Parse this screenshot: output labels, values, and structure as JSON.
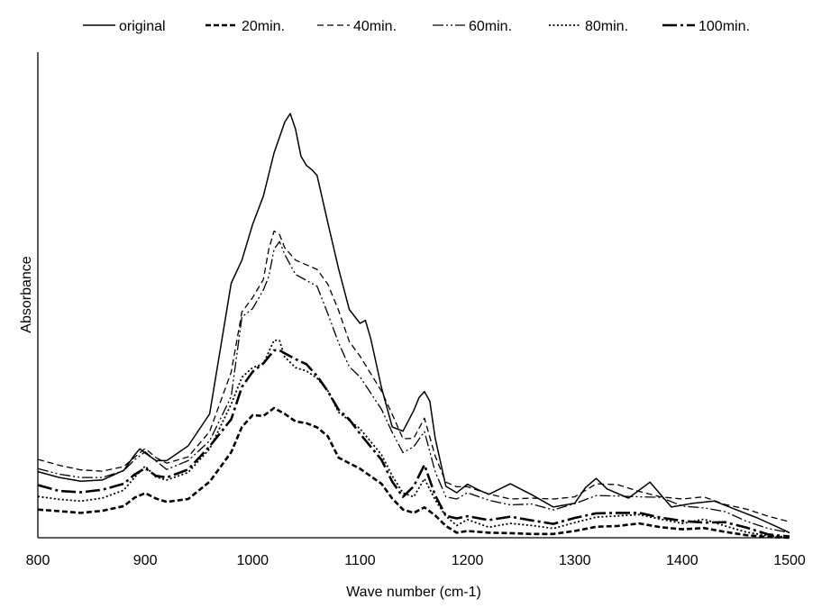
{
  "chart_data": {
    "type": "line",
    "title": "",
    "xlabel": "Wave number (cm-1)",
    "ylabel": "Absorbance",
    "xlim": [
      800,
      1500
    ],
    "ylim": [
      0,
      1
    ],
    "xticks": [
      800,
      900,
      1000,
      1100,
      1200,
      1300,
      1400,
      1500
    ],
    "y_tick_labels_shown": false,
    "grid": false,
    "legend_position": "top",
    "series": [
      {
        "name": "original",
        "style": "solid",
        "x": [
          800,
          820,
          840,
          860,
          880,
          890,
          895,
          900,
          910,
          920,
          940,
          960,
          980,
          990,
          1000,
          1010,
          1020,
          1030,
          1035,
          1040,
          1045,
          1050,
          1055,
          1060,
          1070,
          1080,
          1090,
          1100,
          1105,
          1110,
          1120,
          1130,
          1140,
          1150,
          1155,
          1160,
          1165,
          1170,
          1180,
          1190,
          1200,
          1210,
          1220,
          1240,
          1260,
          1280,
          1300,
          1310,
          1320,
          1330,
          1350,
          1370,
          1390,
          1410,
          1430,
          1450,
          1470,
          1490,
          1500
        ],
        "y": [
          0.157,
          0.143,
          0.134,
          0.137,
          0.16,
          0.196,
          0.211,
          0.201,
          0.183,
          0.183,
          0.218,
          0.294,
          0.604,
          0.659,
          0.744,
          0.811,
          0.914,
          0.987,
          1.007,
          0.97,
          0.906,
          0.884,
          0.874,
          0.86,
          0.748,
          0.639,
          0.542,
          0.509,
          0.516,
          0.473,
          0.356,
          0.263,
          0.253,
          0.302,
          0.333,
          0.347,
          0.324,
          0.237,
          0.122,
          0.107,
          0.127,
          0.114,
          0.103,
          0.128,
          0.102,
          0.073,
          0.082,
          0.119,
          0.141,
          0.116,
          0.094,
          0.132,
          0.073,
          0.082,
          0.087,
          0.067,
          0.047,
          0.024,
          0.012
        ]
      },
      {
        "name": "20min.",
        "style": "short-dash",
        "x": [
          800,
          820,
          840,
          860,
          880,
          890,
          900,
          910,
          920,
          940,
          960,
          980,
          990,
          1000,
          1010,
          1020,
          1030,
          1040,
          1050,
          1060,
          1070,
          1080,
          1100,
          1120,
          1130,
          1140,
          1150,
          1160,
          1170,
          1180,
          1190,
          1200,
          1220,
          1240,
          1260,
          1280,
          1300,
          1320,
          1340,
          1360,
          1380,
          1400,
          1420,
          1440,
          1460,
          1480,
          1500
        ],
        "y": [
          0.067,
          0.063,
          0.059,
          0.064,
          0.075,
          0.095,
          0.106,
          0.093,
          0.085,
          0.092,
          0.133,
          0.203,
          0.263,
          0.291,
          0.289,
          0.308,
          0.294,
          0.276,
          0.272,
          0.262,
          0.241,
          0.19,
          0.164,
          0.128,
          0.093,
          0.067,
          0.059,
          0.072,
          0.053,
          0.028,
          0.012,
          0.016,
          0.012,
          0.011,
          0.009,
          0.009,
          0.016,
          0.026,
          0.028,
          0.034,
          0.025,
          0.02,
          0.023,
          0.014,
          0.006,
          0.002,
          0.0
        ]
      },
      {
        "name": "40min.",
        "style": "dash",
        "x": [
          800,
          820,
          840,
          860,
          880,
          890,
          900,
          910,
          920,
          940,
          960,
          980,
          990,
          1000,
          1010,
          1015,
          1020,
          1025,
          1030,
          1040,
          1060,
          1070,
          1080,
          1090,
          1100,
          1120,
          1130,
          1140,
          1150,
          1160,
          1170,
          1180,
          1190,
          1200,
          1220,
          1240,
          1260,
          1280,
          1300,
          1320,
          1340,
          1360,
          1380,
          1400,
          1420,
          1440,
          1460,
          1480,
          1500
        ],
        "y": [
          0.186,
          0.172,
          0.161,
          0.158,
          0.169,
          0.191,
          0.212,
          0.19,
          0.177,
          0.192,
          0.252,
          0.393,
          0.536,
          0.57,
          0.613,
          0.685,
          0.728,
          0.72,
          0.688,
          0.659,
          0.637,
          0.602,
          0.54,
          0.466,
          0.431,
          0.348,
          0.293,
          0.235,
          0.236,
          0.284,
          0.194,
          0.132,
          0.121,
          0.121,
          0.104,
          0.092,
          0.094,
          0.092,
          0.097,
          0.128,
          0.126,
          0.11,
          0.097,
          0.092,
          0.097,
          0.079,
          0.068,
          0.051,
          0.038
        ]
      },
      {
        "name": "60min.",
        "style": "dash-dot-dot",
        "x": [
          800,
          820,
          840,
          860,
          880,
          890,
          900,
          910,
          920,
          940,
          960,
          980,
          990,
          1000,
          1010,
          1015,
          1020,
          1025,
          1030,
          1040,
          1050,
          1060,
          1070,
          1080,
          1090,
          1100,
          1120,
          1130,
          1140,
          1150,
          1160,
          1170,
          1180,
          1190,
          1200,
          1220,
          1240,
          1260,
          1280,
          1300,
          1320,
          1340,
          1360,
          1380,
          1400,
          1420,
          1440,
          1460,
          1480,
          1500
        ],
        "y": [
          0.164,
          0.151,
          0.143,
          0.143,
          0.159,
          0.185,
          0.204,
          0.182,
          0.162,
          0.183,
          0.23,
          0.335,
          0.524,
          0.544,
          0.588,
          0.62,
          0.685,
          0.703,
          0.672,
          0.625,
          0.611,
          0.597,
          0.532,
          0.463,
          0.406,
          0.382,
          0.305,
          0.25,
          0.202,
          0.216,
          0.252,
          0.157,
          0.097,
          0.092,
          0.107,
          0.089,
          0.078,
          0.08,
          0.066,
          0.081,
          0.1,
          0.099,
          0.097,
          0.096,
          0.075,
          0.071,
          0.062,
          0.039,
          0.022,
          0.012
        ]
      },
      {
        "name": "80min.",
        "style": "dotted",
        "x": [
          800,
          820,
          840,
          860,
          880,
          890,
          900,
          910,
          920,
          940,
          960,
          980,
          990,
          1000,
          1010,
          1020,
          1025,
          1030,
          1040,
          1050,
          1060,
          1070,
          1080,
          1100,
          1120,
          1130,
          1140,
          1150,
          1160,
          1170,
          1180,
          1190,
          1200,
          1220,
          1240,
          1260,
          1280,
          1300,
          1320,
          1340,
          1360,
          1380,
          1400,
          1420,
          1440,
          1460,
          1480,
          1500
        ],
        "y": [
          0.098,
          0.091,
          0.087,
          0.094,
          0.113,
          0.143,
          0.17,
          0.144,
          0.137,
          0.155,
          0.211,
          0.317,
          0.381,
          0.404,
          0.413,
          0.469,
          0.468,
          0.429,
          0.404,
          0.396,
          0.379,
          0.349,
          0.298,
          0.259,
          0.197,
          0.147,
          0.106,
          0.097,
          0.14,
          0.09,
          0.051,
          0.029,
          0.043,
          0.025,
          0.034,
          0.029,
          0.022,
          0.036,
          0.049,
          0.052,
          0.055,
          0.044,
          0.034,
          0.044,
          0.028,
          0.013,
          0.005,
          0.002
        ]
      },
      {
        "name": "100min.",
        "style": "long-dash-dot",
        "x": [
          800,
          820,
          840,
          860,
          880,
          890,
          900,
          910,
          920,
          940,
          960,
          980,
          990,
          1000,
          1010,
          1020,
          1025,
          1030,
          1040,
          1050,
          1060,
          1070,
          1080,
          1090,
          1100,
          1120,
          1130,
          1140,
          1150,
          1160,
          1170,
          1180,
          1190,
          1200,
          1220,
          1240,
          1260,
          1280,
          1300,
          1320,
          1340,
          1360,
          1380,
          1400,
          1420,
          1440,
          1460,
          1480,
          1500
        ],
        "y": [
          0.125,
          0.111,
          0.108,
          0.114,
          0.128,
          0.15,
          0.165,
          0.147,
          0.143,
          0.162,
          0.217,
          0.281,
          0.358,
          0.394,
          0.414,
          0.445,
          0.445,
          0.438,
          0.424,
          0.412,
          0.384,
          0.348,
          0.304,
          0.281,
          0.247,
          0.185,
          0.133,
          0.097,
          0.122,
          0.173,
          0.101,
          0.052,
          0.046,
          0.051,
          0.042,
          0.05,
          0.041,
          0.033,
          0.047,
          0.058,
          0.059,
          0.059,
          0.048,
          0.04,
          0.036,
          0.037,
          0.024,
          0.008,
          0.003
        ]
      }
    ]
  }
}
